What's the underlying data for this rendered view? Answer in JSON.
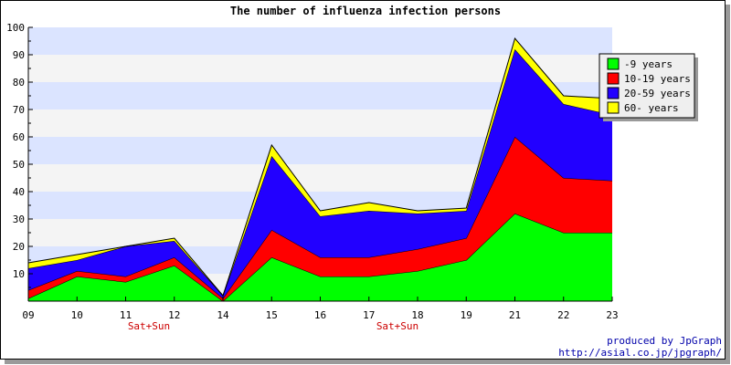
{
  "chart_data": {
    "type": "area",
    "stacked": true,
    "title": "The number of influenza infection persons",
    "x": [
      "09",
      "10",
      "11",
      "12",
      "14",
      "15",
      "16",
      "17",
      "18",
      "19",
      "21",
      "22",
      "23"
    ],
    "weekend_labels": [
      "Sat+Sun",
      "Sat+Sun"
    ],
    "yticks": [
      10,
      20,
      30,
      40,
      50,
      60,
      70,
      80,
      90,
      100
    ],
    "ylim": [
      0,
      100
    ],
    "grid": "alternating horizontal bands",
    "band_colors": [
      "#f4f4f4",
      "#dbe4ff"
    ],
    "legend_position": "top-right",
    "series": [
      {
        "name": "-9 years",
        "color": "#00ff00",
        "values": [
          1,
          9,
          7,
          13,
          0,
          16,
          9,
          9,
          11,
          15,
          32,
          25,
          25
        ]
      },
      {
        "name": "10-19 years",
        "color": "#ff0000",
        "values": [
          3,
          2,
          2,
          3,
          1,
          10,
          7,
          7,
          8,
          8,
          28,
          20,
          19
        ]
      },
      {
        "name": "20-59 years",
        "color": "#2200ff",
        "values": [
          8,
          4,
          11,
          6,
          1,
          27,
          15,
          17,
          13,
          10,
          32,
          27,
          24
        ]
      },
      {
        "name": "60- years",
        "color": "#ffff00",
        "values": [
          2,
          2,
          0,
          1,
          0,
          4,
          2,
          3,
          1,
          1,
          4,
          3,
          6
        ]
      }
    ]
  },
  "credit": {
    "line1": "produced by JpGraph",
    "line2": "http://asial.co.jp/jpgraph/"
  }
}
